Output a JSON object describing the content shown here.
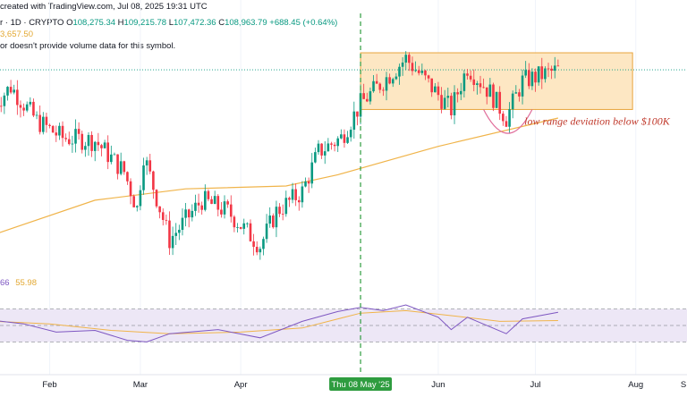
{
  "header": {
    "created": "created with TradingView.com, Jul 08, 2025 19:31 UTC",
    "symbol": "r · 1D · CRYPTO",
    "ohlc": {
      "o_label": "O",
      "o": "108,275.34",
      "h_label": "H",
      "h": "109,215.78",
      "l_label": "L",
      "l": "107,472.36",
      "c_label": "C",
      "c": "108,963.79",
      "change": "+688.45 (+0.64%)"
    },
    "ma_value": "3,657.50",
    "volume_note": "or doesn't provide volume data for this symbol."
  },
  "rsi_header": {
    "value": "66",
    "ma": "55.98"
  },
  "annotation": "low range deviation below $100K",
  "crosshair_label": "Thu 08 May '25",
  "x_axis": {
    "ticks": [
      {
        "label": "Feb",
        "date": "2025-02-01"
      },
      {
        "label": "Mar",
        "date": "2025-03-01"
      },
      {
        "label": "Apr",
        "date": "2025-04-01"
      },
      {
        "label": "Jun",
        "date": "2025-06-01"
      },
      {
        "label": "Jul",
        "date": "2025-07-01"
      },
      {
        "label": "Aug",
        "date": "2025-08-01"
      },
      {
        "label": "S",
        "date": "2025-09-01"
      }
    ]
  },
  "colors": {
    "up": "#089981",
    "down": "#f23645",
    "ma": "#f0b44a",
    "rsi": "#7e57c2",
    "rsi_ma": "#f0b44a",
    "range_fill": "#fde3b8",
    "range_stroke": "#e8a43c",
    "crosshair": "#2e9c3f",
    "arc": "#e06d9a",
    "annotation": "#c0392b",
    "rsi_band": "#ede7f6"
  },
  "chart_data": [
    {
      "type": "candlestick",
      "title": "",
      "x_start": "2025-01-15",
      "x_end": "2025-07-08",
      "price_line_y": 109000,
      "ma_200": {
        "name": "",
        "points": [
          {
            "x": "2025-01-15",
            "y": 80000
          },
          {
            "x": "2025-02-15",
            "y": 86000
          },
          {
            "x": "2025-03-15",
            "y": 88000
          },
          {
            "x": "2025-04-15",
            "y": 88500
          },
          {
            "x": "2025-05-01",
            "y": 90500
          },
          {
            "x": "2025-06-01",
            "y": 95500
          },
          {
            "x": "2025-07-08",
            "y": 100500
          }
        ]
      },
      "range_box": {
        "x_start": "2025-05-08",
        "x_end": "2025-07-31",
        "y_low": 102000,
        "y_high": 112000
      },
      "range_deviation_low": 98000,
      "close_anchors": [
        {
          "x": "2025-01-15",
          "y": 103000
        },
        {
          "x": "2025-01-20",
          "y": 106000
        },
        {
          "x": "2025-01-28",
          "y": 100000
        },
        {
          "x": "2025-02-05",
          "y": 97000
        },
        {
          "x": "2025-02-15",
          "y": 96500
        },
        {
          "x": "2025-02-24",
          "y": 91000
        },
        {
          "x": "2025-02-28",
          "y": 84500
        },
        {
          "x": "2025-03-02",
          "y": 94000
        },
        {
          "x": "2025-03-10",
          "y": 79000
        },
        {
          "x": "2025-03-20",
          "y": 86000
        },
        {
          "x": "2025-03-28",
          "y": 84000
        },
        {
          "x": "2025-04-07",
          "y": 78000
        },
        {
          "x": "2025-04-12",
          "y": 84000
        },
        {
          "x": "2025-04-20",
          "y": 87500
        },
        {
          "x": "2025-04-25",
          "y": 94500
        },
        {
          "x": "2025-05-02",
          "y": 97000
        },
        {
          "x": "2025-05-08",
          "y": 103000
        },
        {
          "x": "2025-05-22",
          "y": 111000
        },
        {
          "x": "2025-06-05",
          "y": 102000
        },
        {
          "x": "2025-06-10",
          "y": 109500
        },
        {
          "x": "2025-06-17",
          "y": 105000
        },
        {
          "x": "2025-06-22",
          "y": 100500
        },
        {
          "x": "2025-06-27",
          "y": 107000
        },
        {
          "x": "2025-07-08",
          "y": 108964
        }
      ]
    },
    {
      "type": "line",
      "title": "",
      "ylim": [
        0,
        100
      ],
      "bands": [
        70,
        50,
        30
      ],
      "series": [
        {
          "name": "",
          "points": [
            {
              "x": "2025-01-15",
              "y": 56
            },
            {
              "x": "2025-01-24",
              "y": 52
            },
            {
              "x": "2025-02-03",
              "y": 42
            },
            {
              "x": "2025-02-15",
              "y": 44
            },
            {
              "x": "2025-02-25",
              "y": 32
            },
            {
              "x": "2025-03-03",
              "y": 30
            },
            {
              "x": "2025-03-10",
              "y": 40
            },
            {
              "x": "2025-03-25",
              "y": 45
            },
            {
              "x": "2025-04-07",
              "y": 35
            },
            {
              "x": "2025-04-20",
              "y": 55
            },
            {
              "x": "2025-05-01",
              "y": 67
            },
            {
              "x": "2025-05-08",
              "y": 72
            },
            {
              "x": "2025-05-15",
              "y": 68
            },
            {
              "x": "2025-05-22",
              "y": 75
            },
            {
              "x": "2025-06-01",
              "y": 60
            },
            {
              "x": "2025-06-05",
              "y": 45
            },
            {
              "x": "2025-06-10",
              "y": 60
            },
            {
              "x": "2025-06-22",
              "y": 40
            },
            {
              "x": "2025-06-27",
              "y": 58
            },
            {
              "x": "2025-07-08",
              "y": 66
            }
          ]
        },
        {
          "name": "",
          "points": [
            {
              "x": "2025-01-15",
              "y": 55
            },
            {
              "x": "2025-02-01",
              "y": 52
            },
            {
              "x": "2025-02-20",
              "y": 44
            },
            {
              "x": "2025-03-10",
              "y": 40
            },
            {
              "x": "2025-04-01",
              "y": 42
            },
            {
              "x": "2025-04-20",
              "y": 47
            },
            {
              "x": "2025-05-08",
              "y": 65
            },
            {
              "x": "2025-05-22",
              "y": 68
            },
            {
              "x": "2025-06-05",
              "y": 62
            },
            {
              "x": "2025-06-20",
              "y": 55
            },
            {
              "x": "2025-07-08",
              "y": 56
            }
          ]
        }
      ]
    }
  ]
}
